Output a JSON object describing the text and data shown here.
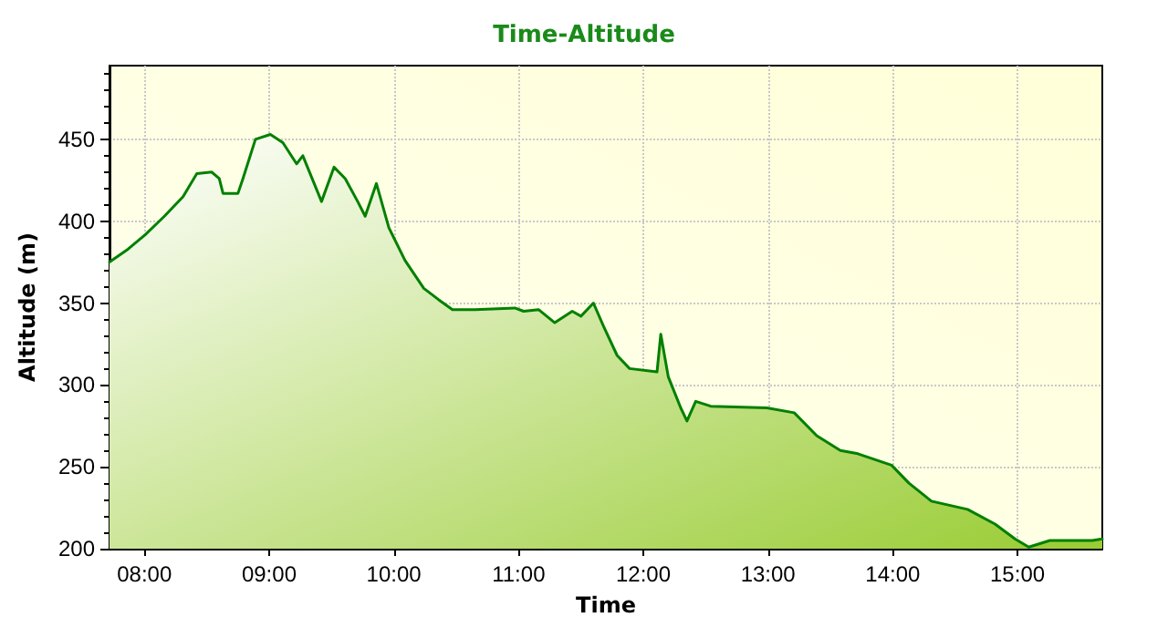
{
  "chart_data": {
    "type": "area",
    "title": "Time-Altitude",
    "xlabel": "Time",
    "ylabel": "Altitude (m)",
    "x": [
      7.72,
      7.87,
      8.01,
      8.16,
      8.31,
      8.42,
      8.54,
      8.6,
      8.63,
      8.75,
      8.79,
      8.89,
      9.01,
      9.11,
      9.22,
      9.27,
      9.42,
      9.52,
      9.61,
      9.71,
      9.77,
      9.86,
      9.96,
      10.09,
      10.24,
      10.36,
      10.47,
      10.65,
      10.97,
      11.04,
      11.16,
      11.29,
      11.43,
      11.5,
      11.6,
      11.68,
      11.79,
      11.89,
      12.11,
      12.14,
      12.2,
      12.3,
      12.35,
      12.42,
      12.54,
      12.99,
      13.21,
      13.39,
      13.58,
      13.72,
      13.99,
      14.13,
      14.31,
      14.6,
      14.82,
      14.98,
      15.09,
      15.26,
      15.6,
      15.68
    ],
    "series": [
      {
        "color": "#008000",
        "values": [
          375,
          383,
          392,
          403,
          415,
          429,
          430,
          426,
          417,
          417,
          426,
          450,
          453,
          448,
          435,
          440,
          412,
          433,
          426,
          412,
          403,
          423,
          396,
          376,
          359,
          352,
          346,
          346,
          347,
          345,
          346,
          338,
          345,
          342,
          350,
          336,
          318,
          310,
          308,
          331,
          305,
          286,
          278,
          290,
          287,
          286,
          283,
          269,
          260,
          258,
          251,
          240,
          229,
          224,
          215,
          206,
          201,
          205,
          205,
          206
        ]
      }
    ],
    "xlim": [
      7.72,
      15.68
    ],
    "xticks": [
      {
        "value": 8,
        "label": "08:00"
      },
      {
        "value": 9,
        "label": "09:00"
      },
      {
        "value": 10,
        "label": "10:00"
      },
      {
        "value": 11,
        "label": "11:00"
      },
      {
        "value": 12,
        "label": "12:00"
      },
      {
        "value": 13,
        "label": "13:00"
      },
      {
        "value": 14,
        "label": "14:00"
      },
      {
        "value": 15,
        "label": "15:00"
      }
    ],
    "ylim": [
      200,
      495
    ],
    "yticks": [
      200,
      250,
      300,
      350,
      400,
      450
    ],
    "grid": true,
    "marker": "none",
    "line_style": "solid"
  }
}
